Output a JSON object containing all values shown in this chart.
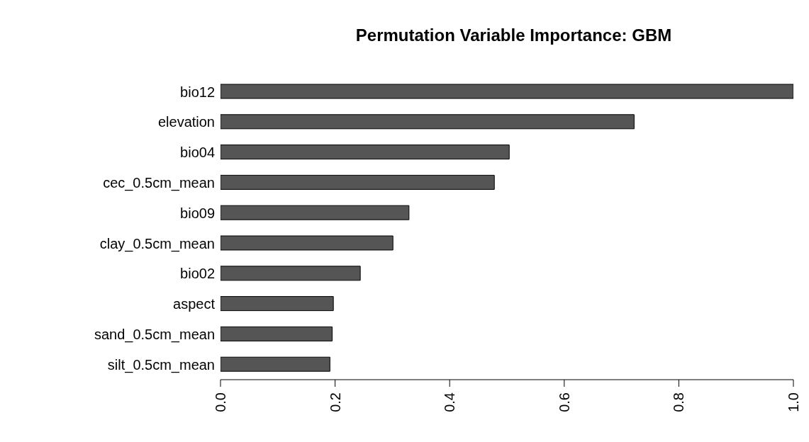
{
  "chart_data": {
    "type": "bar",
    "orientation": "horizontal",
    "title": "Permutation Variable Importance: GBM",
    "categories": [
      "bio12",
      "elevation",
      "bio04",
      "cec_0.5cm_mean",
      "bio09",
      "clay_0.5cm_mean",
      "bio02",
      "aspect",
      "sand_0.5cm_mean",
      "silt_0.5cm_mean"
    ],
    "values": [
      1.0,
      0.722,
      0.504,
      0.478,
      0.329,
      0.301,
      0.244,
      0.197,
      0.195,
      0.191
    ],
    "color": "#555555",
    "xlim": [
      0,
      1
    ],
    "xticks": [
      {
        "value": 0,
        "label": "0.0"
      },
      {
        "value": 0.2,
        "label": "0.2"
      },
      {
        "value": 0.4,
        "label": "0.4"
      },
      {
        "value": 0.6,
        "label": "0.6"
      },
      {
        "value": 0.8,
        "label": "0.8"
      },
      {
        "value": 1,
        "label": "1.0"
      }
    ],
    "grid": false
  }
}
